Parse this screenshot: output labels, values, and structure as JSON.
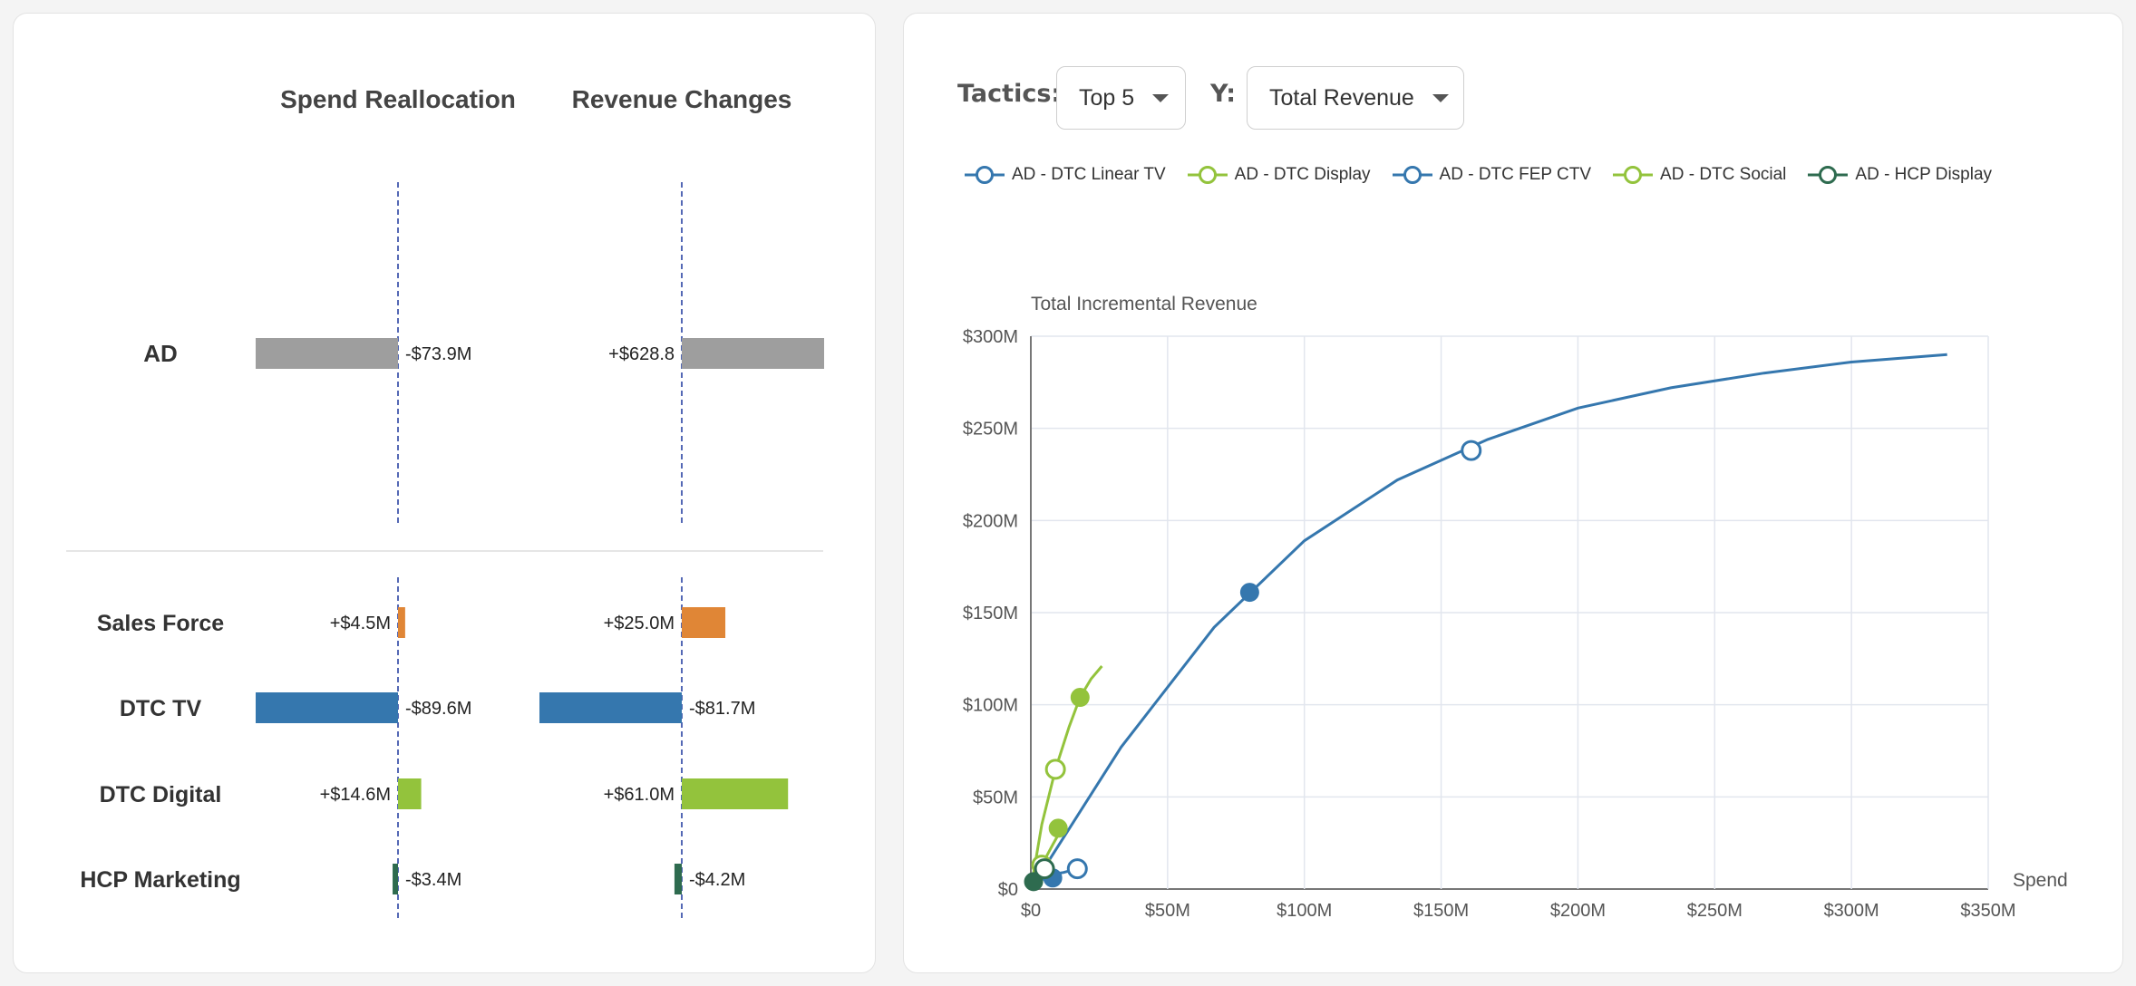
{
  "left_panel": {
    "headers": {
      "spend": "Spend Reallocation",
      "revenue": "Revenue Changes"
    },
    "total_row": {
      "label": "AD",
      "spend": {
        "value": -73.9,
        "label": "-$73.9M"
      },
      "revenue": {
        "value": 628.8,
        "label": "+$628.8"
      },
      "color": "#9e9e9e"
    },
    "rows": [
      {
        "label": "Sales Force",
        "color": "#e08636",
        "spend": {
          "value": 4.5,
          "label": "+$4.5M"
        },
        "revenue": {
          "value": 25.0,
          "label": "+$25.0M"
        }
      },
      {
        "label": "DTC TV",
        "color": "#3577ae",
        "spend": {
          "value": -89.6,
          "label": "-$89.6M"
        },
        "revenue": {
          "value": -81.7,
          "label": "-$81.7M"
        }
      },
      {
        "label": "DTC Digital",
        "color": "#93c33c",
        "spend": {
          "value": 14.6,
          "label": "+$14.6M"
        },
        "revenue": {
          "value": 61.0,
          "label": "+$61.0M"
        }
      },
      {
        "label": "HCP Marketing",
        "color": "#2e6b4f",
        "spend": {
          "value": -3.4,
          "label": "-$3.4M"
        },
        "revenue": {
          "value": -4.2,
          "label": "-$4.2M"
        }
      }
    ],
    "total_scale_max": {
      "spend": 73.9,
      "revenue": 628.8
    },
    "row_scale_max": {
      "spend": 89.6,
      "revenue": 81.7
    }
  },
  "controls": {
    "tactics_label": "Tactics:",
    "tactics_value": "Top 5",
    "y_label": "Y:",
    "y_value": "Total Revenue"
  },
  "legend": [
    {
      "name": "AD - DTC Linear TV",
      "color": "#3577ae"
    },
    {
      "name": "AD - DTC Display",
      "color": "#93c33c"
    },
    {
      "name": "AD - DTC FEP CTV",
      "color": "#3577ae"
    },
    {
      "name": "AD - DTC Social",
      "color": "#93c33c"
    },
    {
      "name": "AD - HCP Display",
      "color": "#2e6b4f"
    }
  ],
  "chart_data": {
    "type": "line",
    "ylabel": "Total Incremental Revenue",
    "xlabel": "Spend",
    "xlim": [
      0,
      350
    ],
    "ylim": [
      0,
      300
    ],
    "x_ticks": [
      0,
      50,
      100,
      150,
      200,
      250,
      300,
      350
    ],
    "x_tick_labels": [
      "$0",
      "$50M",
      "$100M",
      "$150M",
      "$200M",
      "$250M",
      "$300M",
      "$350M"
    ],
    "y_ticks": [
      0,
      50,
      100,
      150,
      200,
      250,
      300
    ],
    "y_tick_labels": [
      "$0",
      "$50M",
      "$100M",
      "$150M",
      "$200M",
      "$250M",
      "$300M"
    ],
    "grid": true,
    "series": [
      {
        "name": "AD - DTC Linear TV",
        "color": "#3577ae",
        "points": [
          [
            0,
            0
          ],
          [
            33,
            77
          ],
          [
            67,
            142
          ],
          [
            100,
            189
          ],
          [
            134,
            222
          ],
          [
            167,
            244
          ],
          [
            200,
            261
          ],
          [
            234,
            272
          ],
          [
            268,
            280
          ],
          [
            300,
            286
          ],
          [
            335,
            290
          ]
        ],
        "markers": [
          {
            "x": 80,
            "y": 161,
            "filled": true
          },
          {
            "x": 161,
            "y": 238,
            "filled": false
          }
        ]
      },
      {
        "name": "AD - DTC Display",
        "color": "#93c33c",
        "points": [
          [
            0,
            0
          ],
          [
            4,
            35
          ],
          [
            9,
            65
          ],
          [
            14,
            88
          ],
          [
            18,
            104
          ],
          [
            22,
            114
          ],
          [
            26,
            121
          ]
        ],
        "markers": [
          {
            "x": 18,
            "y": 104,
            "filled": true
          },
          {
            "x": 9,
            "y": 65,
            "filled": false
          }
        ]
      },
      {
        "name": "AD - DTC FEP CTV",
        "color": "#3577ae",
        "points": [
          [
            0,
            0
          ],
          [
            4,
            5
          ],
          [
            8,
            8
          ],
          [
            12,
            9
          ],
          [
            17,
            11
          ]
        ],
        "markers": [
          {
            "x": 8,
            "y": 6,
            "filled": true
          },
          {
            "x": 17,
            "y": 11,
            "filled": false
          }
        ]
      },
      {
        "name": "AD - DTC Social",
        "color": "#93c33c",
        "points": [
          [
            0,
            0
          ],
          [
            4,
            13
          ],
          [
            8,
            24
          ],
          [
            11,
            32
          ]
        ],
        "markers": [
          {
            "x": 10,
            "y": 33,
            "filled": true
          },
          {
            "x": 4,
            "y": 13,
            "filled": false
          }
        ]
      },
      {
        "name": "AD - HCP Display",
        "color": "#2e6b4f",
        "points": [
          [
            0,
            0
          ],
          [
            2,
            4
          ],
          [
            4,
            6
          ],
          [
            5,
            8
          ],
          [
            6,
            9
          ]
        ],
        "markers": [
          {
            "x": 1,
            "y": 4,
            "filled": true
          },
          {
            "x": 5,
            "y": 11,
            "filled": false
          }
        ]
      }
    ]
  }
}
